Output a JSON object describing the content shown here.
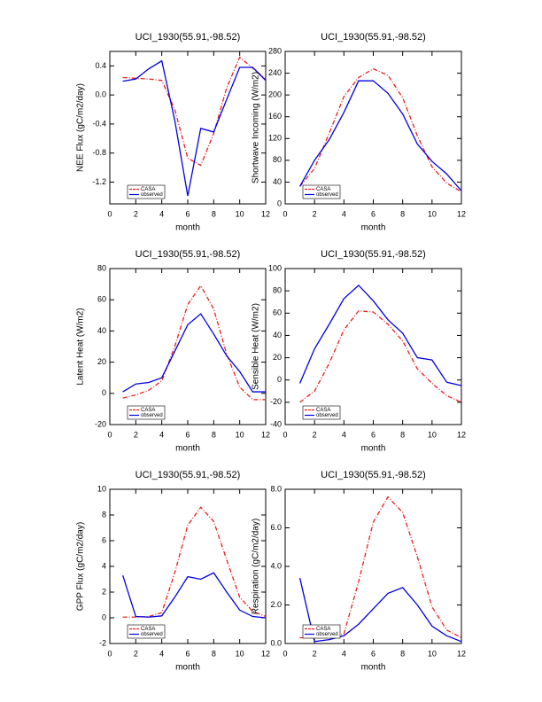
{
  "chart_data": [
    {
      "type": "line",
      "title": "UCI_1930(55.91,-98.52)",
      "xlabel": "month",
      "ylabel": "NEE Flux (gC/m2/day)",
      "x": [
        1,
        2,
        3,
        4,
        5,
        6,
        7,
        8,
        9,
        10,
        11,
        12
      ],
      "xlim": [
        0,
        12
      ],
      "xticks": [
        0,
        2,
        4,
        6,
        8,
        10,
        12
      ],
      "ylim": [
        -1.5,
        0.6
      ],
      "yticks": [
        0.4,
        {
          "value": 0,
          "label": "0.0"
        },
        -0.4,
        -0.8,
        -1.2
      ],
      "legend": "lower left",
      "series": [
        {
          "name": "CASA",
          "color": "#e8201e",
          "dashed": true,
          "values": [
            0.24,
            0.23,
            0.22,
            0.2,
            -0.2,
            -0.87,
            -0.97,
            -0.53,
            0.1,
            0.52,
            0.37,
            0.22
          ]
        },
        {
          "name": "observed",
          "color": "#0000e0",
          "dashed": false,
          "values": [
            0.19,
            0.22,
            0.36,
            0.47,
            -0.35,
            -1.39,
            -0.46,
            -0.51,
            -0.06,
            0.38,
            0.38,
            0.2
          ]
        }
      ]
    },
    {
      "type": "line",
      "title": "UCI_1930(55.91,-98.52)",
      "xlabel": "month",
      "ylabel": "Shortwave Incoming (W/m2)",
      "x": [
        1,
        2,
        3,
        4,
        5,
        6,
        7,
        8,
        9,
        10,
        11,
        12
      ],
      "xlim": [
        0,
        12
      ],
      "xticks": [
        0,
        2,
        4,
        6,
        8,
        10,
        12
      ],
      "ylim": [
        0,
        280
      ],
      "yticks": [
        0,
        40,
        80,
        120,
        160,
        200,
        240,
        280
      ],
      "legend": "lower left",
      "series": [
        {
          "name": "CASA",
          "color": "#e8201e",
          "dashed": true,
          "values": [
            32,
            65,
            130,
            197,
            232,
            248,
            236,
            195,
            125,
            68,
            38,
            22
          ]
        },
        {
          "name": "observed",
          "color": "#0000e0",
          "dashed": false,
          "values": [
            32,
            80,
            118,
            168,
            226,
            226,
            203,
            165,
            110,
            78,
            55,
            24
          ]
        }
      ]
    },
    {
      "type": "line",
      "title": "UCI_1930(55.91,-98.52)",
      "xlabel": "month",
      "ylabel": "Latent Heat (W/m2)",
      "x": [
        1,
        2,
        3,
        4,
        5,
        6,
        7,
        8,
        9,
        10,
        11,
        12
      ],
      "xlim": [
        0,
        12
      ],
      "xticks": [
        0,
        2,
        4,
        6,
        8,
        10,
        12
      ],
      "ylim": [
        -20,
        80
      ],
      "yticks": [
        -20,
        0,
        20,
        40,
        60,
        80
      ],
      "legend": "lower left",
      "series": [
        {
          "name": "CASA",
          "color": "#e8201e",
          "dashed": true,
          "values": [
            -3,
            -1,
            2,
            8,
            30,
            57,
            69,
            54,
            25,
            4,
            -4,
            -4
          ]
        },
        {
          "name": "observed",
          "color": "#0000e0",
          "dashed": false,
          "values": [
            1,
            6,
            7,
            10,
            27,
            44,
            51,
            38,
            24,
            14,
            1,
            1
          ]
        }
      ]
    },
    {
      "type": "line",
      "title": "UCI_1930(55.91,-98.52)",
      "xlabel": "month",
      "ylabel": "Sensible Heat (W/m2)",
      "x": [
        1,
        2,
        3,
        4,
        5,
        6,
        7,
        8,
        9,
        10,
        11,
        12
      ],
      "xlim": [
        0,
        12
      ],
      "xticks": [
        0,
        2,
        4,
        6,
        8,
        10,
        12
      ],
      "ylim": [
        -40,
        100
      ],
      "yticks": [
        -40,
        -20,
        0,
        20,
        40,
        60,
        80,
        100
      ],
      "legend": "lower left",
      "series": [
        {
          "name": "CASA",
          "color": "#e8201e",
          "dashed": true,
          "values": [
            -20,
            -10,
            15,
            45,
            62,
            61,
            50,
            35,
            10,
            -3,
            -14,
            -20
          ]
        },
        {
          "name": "observed",
          "color": "#0000e0",
          "dashed": false,
          "values": [
            -3,
            28,
            50,
            73,
            85,
            71,
            54,
            42,
            20,
            18,
            -2,
            -5
          ]
        }
      ]
    },
    {
      "type": "line",
      "title": "UCI_1930(55.91,-98.52)",
      "xlabel": "month",
      "ylabel": "GPP Flux (gC/m2/day)",
      "x": [
        1,
        2,
        3,
        4,
        5,
        6,
        7,
        8,
        9,
        10,
        11,
        12
      ],
      "xlim": [
        0,
        12
      ],
      "xticks": [
        0,
        2,
        4,
        6,
        8,
        10,
        12
      ],
      "ylim": [
        -2,
        10
      ],
      "yticks": [
        -2,
        0,
        2,
        4,
        6,
        8,
        10
      ],
      "legend": "lower left",
      "series": [
        {
          "name": "CASA",
          "color": "#e8201e",
          "dashed": true,
          "values": [
            0.05,
            0.05,
            0.1,
            0.4,
            3.5,
            7.2,
            8.6,
            7.5,
            4.5,
            1.6,
            0.5,
            0.1
          ]
        },
        {
          "name": "observed",
          "color": "#0000e0",
          "dashed": false,
          "values": [
            3.3,
            0.1,
            0.05,
            0.15,
            1.6,
            3.2,
            3.0,
            3.5,
            2.0,
            0.6,
            0.1,
            0.0
          ]
        }
      ]
    },
    {
      "type": "line",
      "title": "UCI_1930(55.91,-98.52)",
      "xlabel": "month",
      "ylabel": "Respiration (gC/m2/day)",
      "x": [
        1,
        2,
        3,
        4,
        5,
        6,
        7,
        8,
        9,
        10,
        11,
        12
      ],
      "xlim": [
        0,
        12
      ],
      "xticks": [
        0,
        2,
        4,
        6,
        8,
        10,
        12
      ],
      "ylim": [
        0,
        8
      ],
      "yticks": [
        {
          "value": 0,
          "label": "0.0"
        },
        {
          "value": 2,
          "label": "2.0"
        },
        {
          "value": 4,
          "label": "4.0"
        },
        {
          "value": 6,
          "label": "6.0"
        },
        {
          "value": 8,
          "label": "8.0"
        }
      ],
      "legend": "lower left",
      "series": [
        {
          "name": "CASA",
          "color": "#e8201e",
          "dashed": true,
          "values": [
            0.3,
            0.3,
            0.3,
            0.5,
            3.2,
            6.3,
            7.6,
            6.8,
            4.5,
            1.9,
            0.7,
            0.3
          ]
        },
        {
          "name": "observed",
          "color": "#0000e0",
          "dashed": false,
          "values": [
            3.4,
            0.1,
            0.2,
            0.4,
            1.0,
            1.8,
            2.6,
            2.9,
            2.0,
            0.9,
            0.4,
            0.1
          ]
        }
      ]
    }
  ]
}
